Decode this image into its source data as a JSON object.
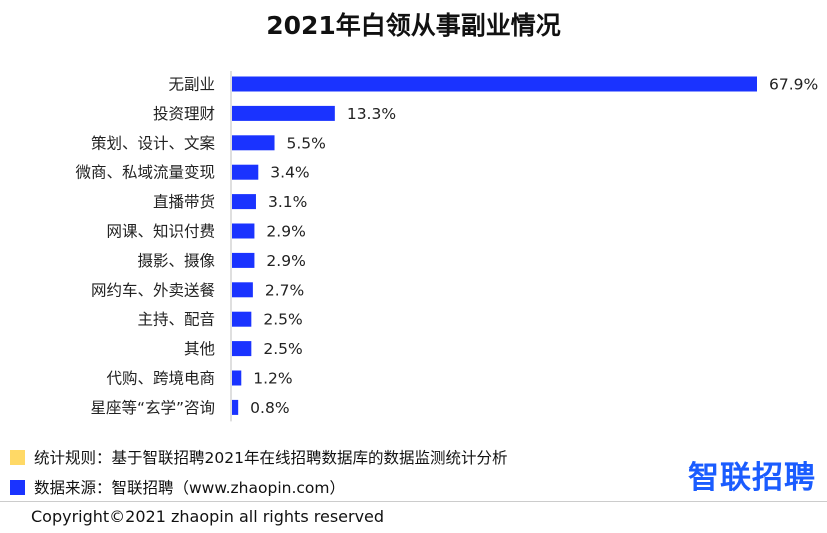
{
  "chart_data": {
    "type": "bar",
    "orientation": "horizontal",
    "title": "2021年白领从事副业情况",
    "categories": [
      "无副业",
      "投资理财",
      "策划、设计、文案",
      "微商、私域流量变现",
      "直播带货",
      "网课、知识付费",
      "摄影、摄像",
      "网约车、外卖送餐",
      "主持、配音",
      "其他",
      "代购、跨境电商",
      "星座等“玄学”咨询"
    ],
    "values": [
      67.9,
      13.3,
      5.5,
      3.4,
      3.1,
      2.9,
      2.9,
      2.7,
      2.5,
      2.5,
      1.2,
      0.8
    ],
    "value_labels": [
      "67.9%",
      "13.3%",
      "5.5%",
      "3.4%",
      "3.1%",
      "2.9%",
      "2.9%",
      "2.7%",
      "2.5%",
      "2.5%",
      "1.2%",
      "0.8%"
    ],
    "xlim": [
      0,
      67.9
    ],
    "bar_color": "#1a33ff",
    "grid": false
  },
  "notes": [
    {
      "text": "统计规则：基于智联招聘2021年在线招聘数据库的数据监测统计分析",
      "color": "#ffd966"
    },
    {
      "text": "数据来源：智联招聘（www.zhaopin.com）",
      "color": "#1a33ff"
    }
  ],
  "logo": "智联招聘",
  "copyright": "Copyright©2021 zhaopin all rights reserved"
}
